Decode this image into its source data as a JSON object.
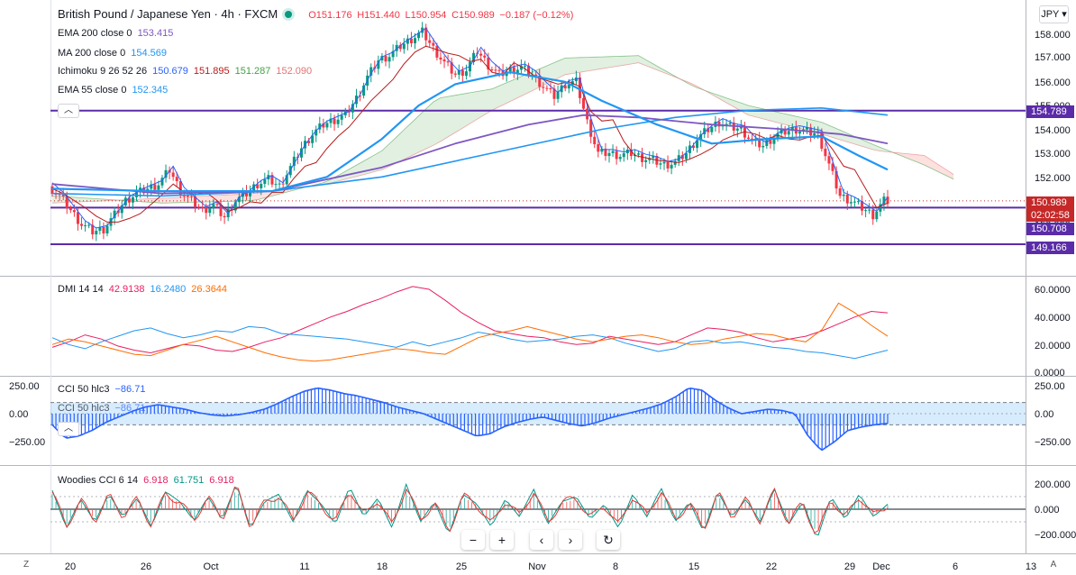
{
  "header": {
    "symbol": "British Pound / Japanese Yen · 4h · FXCM",
    "open": "O151.176",
    "high": "H151.440",
    "low": "L150.954",
    "close": "C150.989",
    "change": "−0.187 (−0.12%)"
  },
  "currency": "JPY",
  "legend": {
    "ema200": {
      "label": "EMA 200 close 0",
      "value": "153.415",
      "color": "#7e57c2"
    },
    "ma200": {
      "label": "MA 200 close 0",
      "value": "154.569",
      "color": "#2196f3"
    },
    "ichimoku": {
      "label": "Ichimoku 9 26 52 26",
      "v1": "150.679",
      "v2": "151.895",
      "v3": "151.287",
      "v4": "152.090",
      "c1": "#2962ff",
      "c2": "#b71c1c",
      "c3": "#43a047",
      "c4": "#e57373"
    },
    "ema55": {
      "label": "EMA 55 close 0",
      "value": "152.345",
      "color": "#2196f3"
    },
    "dmi": {
      "label": "DMI 14 14",
      "v1": "42.9138",
      "v2": "16.2480",
      "v3": "26.3644",
      "c1": "#e91e63",
      "c2": "#2196f3",
      "c3": "#ff6d00"
    },
    "cci": {
      "label": "CCI 50 hlc3",
      "value": "−86.71"
    },
    "cci_ghost": {
      "label": "CCI 50 hlc3",
      "value": "−86.71"
    },
    "woodies": {
      "label": "Woodies CCI 6 14",
      "v1": "6.918",
      "v2": "61.751",
      "v3": "6.918"
    }
  },
  "price_labels": {
    "level1": "154.789",
    "last": "150.989",
    "countdown": "02:02:58",
    "level2": "150.708",
    "level3": "149.166"
  },
  "corners": {
    "left": "Z",
    "right": "A"
  },
  "nav": {
    "minus": "−",
    "plus": "+",
    "left": "‹",
    "right": "›",
    "reset": "↻"
  },
  "collapse_icon": "chevron-up-icon",
  "chart_data": {
    "type": "candlestick",
    "title": "British Pound / Japanese Yen · 4h · FXCM",
    "x_tick_labels": [
      "20",
      "26",
      "Oct",
      "11",
      "18",
      "25",
      "Nov",
      "8",
      "15",
      "22",
      "29",
      "Dec",
      "6",
      "13"
    ],
    "main_pane": {
      "y_ticks": [
        "158.000",
        "157.000",
        "156.000",
        "155.000",
        "154.000",
        "153.000",
        "152.000",
        "151.000",
        "150.000"
      ],
      "ylim": [
        148.9,
        158.5
      ],
      "horizontal_levels": [
        154.789,
        150.708,
        149.166
      ],
      "last_price": 150.989,
      "close_path": [
        [
          0,
          151.6
        ],
        [
          3,
          151.2
        ],
        [
          6,
          150.6
        ],
        [
          9,
          150.0
        ],
        [
          12,
          149.7
        ],
        [
          15,
          149.8
        ],
        [
          18,
          150.4
        ],
        [
          21,
          151.0
        ],
        [
          24,
          151.3
        ],
        [
          27,
          151.5
        ],
        [
          30,
          151.7
        ],
        [
          33,
          152.3
        ],
        [
          36,
          151.4
        ],
        [
          39,
          151.0
        ],
        [
          42,
          150.6
        ],
        [
          45,
          150.8
        ],
        [
          48,
          150.3
        ],
        [
          51,
          151.0
        ],
        [
          54,
          151.3
        ],
        [
          57,
          151.7
        ],
        [
          60,
          151.9
        ],
        [
          63,
          151.6
        ],
        [
          66,
          152.4
        ],
        [
          69,
          153.2
        ],
        [
          72,
          153.8
        ],
        [
          75,
          154.2
        ],
        [
          78,
          154.4
        ],
        [
          81,
          154.6
        ],
        [
          84,
          155.3
        ],
        [
          87,
          156.2
        ],
        [
          90,
          156.9
        ],
        [
          93,
          157.1
        ],
        [
          96,
          157.5
        ],
        [
          99,
          157.8
        ],
        [
          102,
          158.1
        ],
        [
          105,
          157.4
        ],
        [
          108,
          156.8
        ],
        [
          111,
          156.3
        ],
        [
          114,
          156.5
        ],
        [
          117,
          157.3
        ],
        [
          120,
          156.7
        ],
        [
          123,
          156.3
        ],
        [
          126,
          156.5
        ],
        [
          129,
          156.6
        ],
        [
          132,
          156.3
        ],
        [
          135,
          155.8
        ],
        [
          138,
          155.4
        ],
        [
          141,
          155.9
        ],
        [
          144,
          156.0
        ],
        [
          147,
          154.3
        ],
        [
          150,
          153.0
        ],
        [
          153,
          153.0
        ],
        [
          156,
          152.9
        ],
        [
          159,
          153.0
        ],
        [
          162,
          152.8
        ],
        [
          165,
          152.7
        ],
        [
          168,
          152.5
        ],
        [
          171,
          152.6
        ],
        [
          174,
          153.0
        ],
        [
          177,
          153.6
        ],
        [
          180,
          154.0
        ],
        [
          183,
          154.3
        ],
        [
          186,
          154.1
        ],
        [
          189,
          154.0
        ],
        [
          192,
          153.5
        ],
        [
          195,
          153.3
        ],
        [
          198,
          153.7
        ],
        [
          201,
          153.9
        ],
        [
          204,
          154.0
        ],
        [
          207,
          153.9
        ],
        [
          210,
          153.8
        ],
        [
          213,
          152.5
        ],
        [
          216,
          151.2
        ],
        [
          219,
          151.0
        ],
        [
          222,
          150.7
        ],
        [
          225,
          150.4
        ],
        [
          228,
          150.989
        ]
      ],
      "ema55_path": [
        [
          0,
          151.5
        ],
        [
          30,
          151.4
        ],
        [
          60,
          151.4
        ],
        [
          75,
          152.0
        ],
        [
          90,
          153.6
        ],
        [
          100,
          155.0
        ],
        [
          110,
          155.9
        ],
        [
          125,
          156.4
        ],
        [
          140,
          156.0
        ],
        [
          150,
          155.2
        ],
        [
          165,
          154.2
        ],
        [
          180,
          153.4
        ],
        [
          195,
          153.6
        ],
        [
          210,
          153.7
        ],
        [
          220,
          152.9
        ],
        [
          228,
          152.3
        ]
      ],
      "ema200_path": [
        [
          0,
          151.7
        ],
        [
          30,
          151.3
        ],
        [
          60,
          151.4
        ],
        [
          90,
          152.4
        ],
        [
          110,
          153.4
        ],
        [
          130,
          154.2
        ],
        [
          145,
          154.6
        ],
        [
          160,
          154.5
        ],
        [
          180,
          154.2
        ],
        [
          200,
          154.0
        ],
        [
          215,
          153.8
        ],
        [
          228,
          153.4
        ]
      ],
      "ma200_path": [
        [
          0,
          151.3
        ],
        [
          30,
          151.2
        ],
        [
          60,
          151.4
        ],
        [
          90,
          152.0
        ],
        [
          120,
          153.0
        ],
        [
          150,
          154.0
        ],
        [
          170,
          154.5
        ],
        [
          190,
          154.8
        ],
        [
          210,
          154.9
        ],
        [
          228,
          154.6
        ]
      ],
      "ichimoku_cloud": {
        "spanA": [
          [
            0,
            151.2
          ],
          [
            30,
            150.9
          ],
          [
            55,
            151.0
          ],
          [
            75,
            151.8
          ],
          [
            90,
            153.1
          ],
          [
            105,
            155.3
          ],
          [
            120,
            155.7
          ],
          [
            140,
            157.0
          ],
          [
            160,
            157.1
          ],
          [
            175,
            155.8
          ],
          [
            190,
            155.0
          ],
          [
            210,
            154.3
          ],
          [
            225,
            153.3
          ],
          [
            238,
            152.5
          ],
          [
            246,
            151.9
          ]
        ],
        "spanB": [
          [
            0,
            150.9
          ],
          [
            30,
            151.1
          ],
          [
            55,
            151.3
          ],
          [
            75,
            151.7
          ],
          [
            90,
            152.3
          ],
          [
            105,
            153.4
          ],
          [
            120,
            154.8
          ],
          [
            140,
            156.3
          ],
          [
            160,
            156.8
          ],
          [
            175,
            155.9
          ],
          [
            190,
            154.6
          ],
          [
            210,
            153.8
          ],
          [
            225,
            153.1
          ],
          [
            238,
            152.9
          ],
          [
            246,
            152.1
          ]
        ]
      }
    },
    "dmi_pane": {
      "y_ticks": [
        "60.0000",
        "40.0000",
        "20.0000",
        "0.0000"
      ],
      "ylim": [
        0,
        65
      ],
      "series": [
        {
          "name": "+DI",
          "color": "#e91e63",
          "values": [
            18,
            22,
            27,
            24,
            19,
            16,
            14,
            17,
            20,
            19,
            16,
            15,
            18,
            22,
            25,
            30,
            35,
            40,
            44,
            49,
            53,
            58,
            62,
            60,
            52,
            43,
            36,
            30,
            28,
            26,
            25,
            22,
            20,
            21,
            26,
            24,
            22,
            20,
            22,
            27,
            32,
            31,
            29,
            25,
            22,
            24,
            26,
            30,
            35,
            40,
            44,
            43
          ]
        },
        {
          "name": "−DI",
          "color": "#2196f3",
          "values": [
            25,
            20,
            17,
            22,
            26,
            30,
            32,
            28,
            25,
            27,
            30,
            29,
            33,
            32,
            28,
            27,
            26,
            25,
            24,
            22,
            20,
            18,
            22,
            19,
            22,
            25,
            29,
            27,
            24,
            22,
            23,
            24,
            26,
            27,
            25,
            21,
            18,
            15,
            17,
            22,
            23,
            21,
            22,
            20,
            18,
            17,
            15,
            14,
            12,
            10,
            13,
            16
          ]
        },
        {
          "name": "ADX",
          "color": "#ff6d00",
          "values": [
            20,
            24,
            22,
            19,
            16,
            13,
            12,
            16,
            20,
            23,
            26,
            22,
            18,
            14,
            11,
            9,
            8,
            9,
            11,
            13,
            15,
            17,
            16,
            14,
            13,
            19,
            25,
            28,
            30,
            33,
            30,
            27,
            24,
            22,
            24,
            26,
            27,
            25,
            22,
            20,
            21,
            24,
            26,
            28,
            27,
            24,
            22,
            31,
            50,
            43,
            34,
            26
          ]
        }
      ]
    },
    "cci_pane": {
      "y_ticks": [
        "250.00",
        "0.00",
        "−250.00"
      ],
      "ylim": [
        -420,
        300
      ],
      "band": [
        -100,
        100
      ],
      "values": [
        -100,
        -220,
        -200,
        -150,
        -80,
        -30,
        20,
        60,
        80,
        60,
        40,
        10,
        -10,
        -20,
        -10,
        10,
        40,
        90,
        150,
        200,
        230,
        210,
        180,
        160,
        130,
        100,
        60,
        30,
        0,
        -50,
        -100,
        -150,
        -200,
        -180,
        -120,
        -80,
        -50,
        -30,
        -60,
        -90,
        -110,
        -80,
        -40,
        -10,
        20,
        50,
        90,
        150,
        230,
        210,
        120,
        50,
        0,
        20,
        40,
        30,
        0,
        -200,
        -330,
        -250,
        -150,
        -120,
        -100,
        -87
      ]
    },
    "woodies_pane": {
      "y_ticks": [
        "200.000",
        "0.000",
        "−200.000"
      ],
      "ylim": [
        -300,
        300
      ],
      "values": [
        150,
        -150,
        80,
        -100,
        120,
        -60,
        90,
        -140,
        140,
        60,
        -90,
        100,
        -80,
        200,
        -150,
        60,
        120,
        -100,
        150,
        40,
        -120,
        180,
        -60,
        90,
        -150,
        200,
        -100,
        60,
        -200,
        120,
        40,
        -140,
        80,
        -60,
        160,
        -120,
        60,
        100,
        -80,
        40,
        -150,
        120,
        -60,
        170,
        -100,
        60,
        -180,
        140,
        -60,
        80,
        -100,
        160,
        -120,
        60,
        -240,
        100,
        -80,
        120,
        -60,
        40
      ]
    }
  }
}
